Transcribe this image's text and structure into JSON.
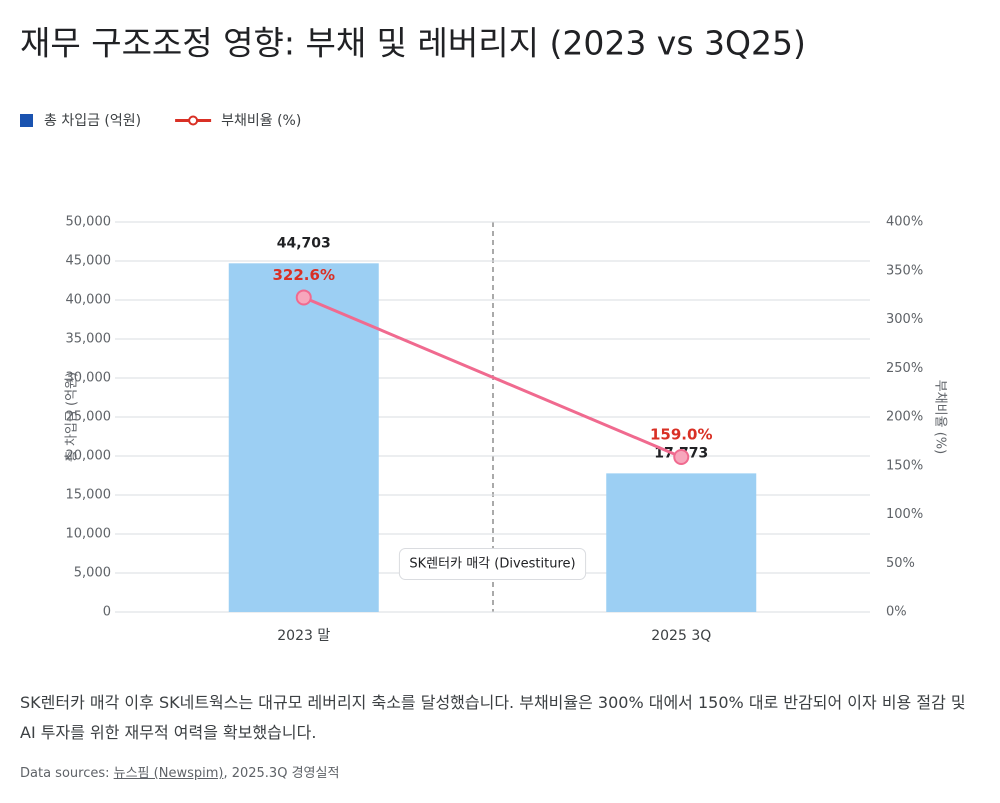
{
  "chart_data": {
    "type": "bar_line",
    "title": "재무 구조조정 영향: 부채 및 레버리지 (2023 vs 3Q25)",
    "categories": [
      "2023 말",
      "2025 3Q"
    ],
    "series": [
      {
        "name": "총 차입금 (억원)",
        "type": "bar",
        "color": "#9ccff3",
        "values": [
          44703,
          17773
        ],
        "value_labels": [
          "44,703",
          "17,773"
        ]
      },
      {
        "name": "부채비율 (%)",
        "type": "line",
        "axis": "y2",
        "color": "#f06a8f",
        "label_color": "#d93025",
        "values": [
          322.6,
          159.0
        ],
        "value_labels": [
          "322.6%",
          "159.0%"
        ]
      }
    ],
    "ylabel": "총 차입금 (억원)",
    "y2label": "부채비율 (%)",
    "ylim": [
      0,
      50000
    ],
    "yticks": [
      0,
      {
        "value": 5000,
        "label": "5,000"
      },
      {
        "value": 10000,
        "label": "10,000"
      },
      {
        "value": 15000,
        "label": "15,000"
      },
      {
        "value": 20000,
        "label": "20,000"
      },
      {
        "value": 25000,
        "label": "25,000"
      },
      {
        "value": 30000,
        "label": "30,000"
      },
      {
        "value": 35000,
        "label": "35,000"
      },
      {
        "value": 40000,
        "label": "40,000"
      },
      {
        "value": 45000,
        "label": "45,000"
      },
      {
        "value": 50000,
        "label": "50,000"
      }
    ],
    "y2lim": [
      0,
      400
    ],
    "y2ticks": [
      {
        "value": 0,
        "label": "0%"
      },
      {
        "value": 50,
        "label": "50%"
      },
      {
        "value": 100,
        "label": "100%"
      },
      {
        "value": 150,
        "label": "150%"
      },
      {
        "value": 200,
        "label": "200%"
      },
      {
        "value": 250,
        "label": "250%"
      },
      {
        "value": 300,
        "label": "300%"
      },
      {
        "value": 350,
        "label": "350%"
      },
      {
        "value": 400,
        "label": "400%"
      }
    ],
    "grid": true,
    "legend": "top-left",
    "annotation": "SK렌터카 매각 (Divestiture)"
  },
  "description": "SK렌터카 매각 이후 SK네트웍스는 대규모 레버리지 축소를 달성했습니다. 부채비율은 300% 대에서 150% 대로 반감되어 이자 비용 절감 및 AI 투자를 위한 재무적 여력을 확보했습니다.",
  "source": {
    "prefix": "Data sources:",
    "link": "뉴스핌 (Newspim)",
    "suffix": ", 2025.3Q 경영실적"
  }
}
